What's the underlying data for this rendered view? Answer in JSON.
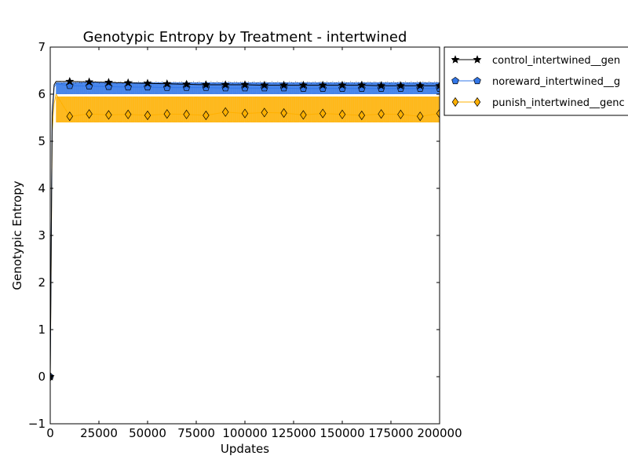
{
  "chart_data": {
    "type": "line",
    "title": "Genotypic Entropy by Treatment - intertwined",
    "xlabel": "Updates",
    "ylabel": "Genotypic Entropy",
    "xlim": [
      0,
      200000
    ],
    "ylim": [
      -1,
      7
    ],
    "x_ticks": [
      0,
      25000,
      50000,
      75000,
      100000,
      125000,
      150000,
      175000,
      200000
    ],
    "x_tick_labels": [
      "0",
      "25000",
      "50000",
      "75000",
      "100000",
      "125000",
      "150000",
      "175000",
      "200000"
    ],
    "y_ticks": [
      -1,
      0,
      1,
      2,
      3,
      4,
      5,
      6,
      7
    ],
    "y_tick_labels": [
      "−1",
      "0",
      "1",
      "2",
      "3",
      "4",
      "5",
      "6",
      "7"
    ],
    "grid": false,
    "legend_position": "outside-top-right",
    "series": [
      {
        "name": "control_intertwined__gen",
        "color": "#000000",
        "marker": "star",
        "band": [
          6.22,
          6.28
        ],
        "x": [
          0,
          1000,
          2000,
          3000,
          10000,
          20000,
          30000,
          40000,
          50000,
          60000,
          70000,
          80000,
          90000,
          100000,
          110000,
          120000,
          130000,
          140000,
          150000,
          160000,
          170000,
          180000,
          190000,
          200000
        ],
        "y": [
          0,
          5.6,
          6.2,
          6.27,
          6.27,
          6.26,
          6.25,
          6.24,
          6.23,
          6.22,
          6.21,
          6.2,
          6.2,
          6.2,
          6.19,
          6.19,
          6.19,
          6.19,
          6.19,
          6.19,
          6.18,
          6.18,
          6.18,
          6.18
        ]
      },
      {
        "name": "noreward_intertwined__g",
        "color": "#3377e8",
        "marker": "pentagon",
        "band": [
          6.0,
          6.25
        ],
        "x": [
          0,
          1000,
          2000,
          3000,
          10000,
          20000,
          30000,
          40000,
          50000,
          60000,
          70000,
          80000,
          90000,
          100000,
          110000,
          120000,
          130000,
          140000,
          150000,
          160000,
          170000,
          180000,
          190000,
          200000
        ],
        "y": [
          0,
          5.5,
          6.15,
          6.22,
          6.18,
          6.17,
          6.16,
          6.15,
          6.15,
          6.14,
          6.14,
          6.14,
          6.13,
          6.13,
          6.13,
          6.13,
          6.12,
          6.12,
          6.12,
          6.12,
          6.12,
          6.12,
          6.12,
          6.12
        ]
      },
      {
        "name": "punish_intertwined__genc",
        "color": "#ffb000",
        "marker": "diamond",
        "band": [
          5.4,
          5.95
        ],
        "x": [
          0,
          1000,
          2000,
          3000,
          10000,
          20000,
          30000,
          40000,
          50000,
          60000,
          70000,
          80000,
          90000,
          100000,
          110000,
          120000,
          130000,
          140000,
          150000,
          160000,
          170000,
          180000,
          190000,
          200000
        ],
        "y": [
          0,
          5.2,
          5.8,
          6.0,
          5.53,
          5.58,
          5.56,
          5.57,
          5.55,
          5.58,
          5.57,
          5.55,
          5.62,
          5.59,
          5.61,
          5.6,
          5.56,
          5.59,
          5.57,
          5.55,
          5.58,
          5.57,
          5.53,
          5.59
        ]
      }
    ]
  }
}
